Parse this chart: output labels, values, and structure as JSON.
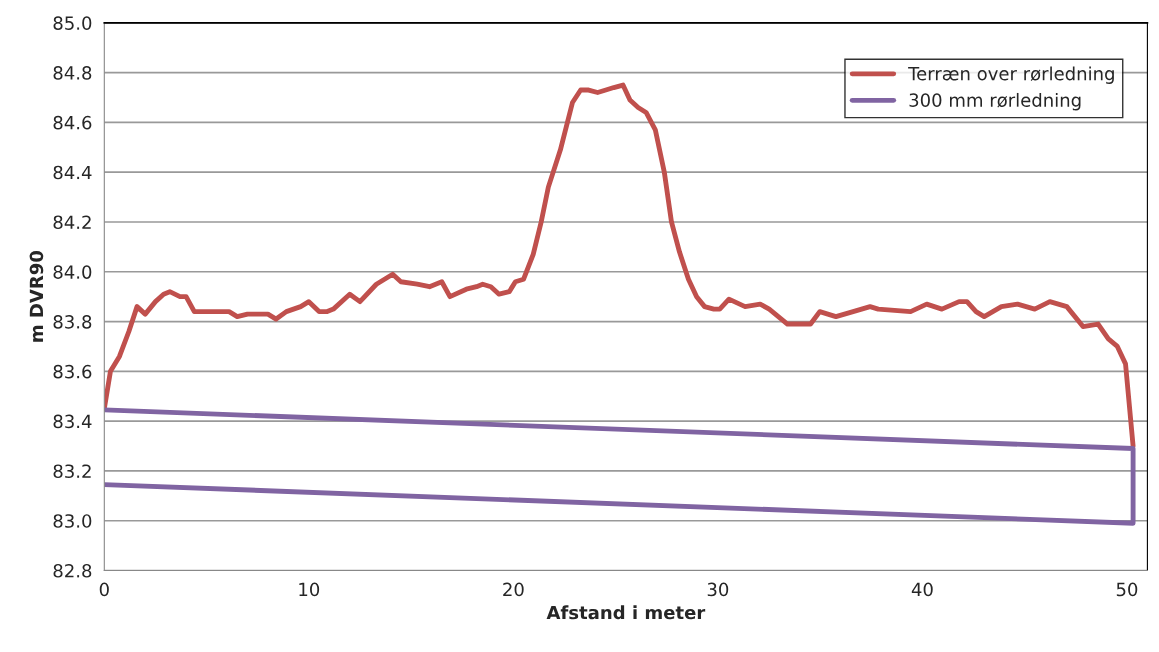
{
  "chart_data": {
    "type": "line",
    "xlabel": "Afstand i meter",
    "ylabel": "m DVR90",
    "xlim": [
      0,
      51
    ],
    "xticks": [
      0,
      10,
      20,
      30,
      40,
      50
    ],
    "ylim": [
      82.8,
      85.0
    ],
    "yticks": [
      {
        "value": 82.8,
        "label": "82.8"
      },
      {
        "value": 83.0,
        "label": "83.0"
      },
      {
        "value": 83.2,
        "label": "83.2"
      },
      {
        "value": 83.4,
        "label": "83.4"
      },
      {
        "value": 83.6,
        "label": "83.6"
      },
      {
        "value": 83.8,
        "label": "83.8"
      },
      {
        "value": 84.0,
        "label": "84.0"
      },
      {
        "value": 84.2,
        "label": "84.2"
      },
      {
        "value": 84.4,
        "label": "84.4"
      },
      {
        "value": 84.6,
        "label": "84.6"
      },
      {
        "value": 84.8,
        "label": "84.8"
      },
      {
        "value": 85.0,
        "label": "85.0"
      }
    ],
    "grid": "y",
    "legend": "top right",
    "marker": "none",
    "line_style": "solid",
    "series": [
      {
        "name": "Terræn over rørledning",
        "color": "#c0504d",
        "x": [
          0,
          0.3,
          0.74,
          1.2,
          1.6,
          2.0,
          2.5,
          2.9,
          3.2,
          3.7,
          4.0,
          4.4,
          5.3,
          5.8,
          6.1,
          6.5,
          7.0,
          7.6,
          8.0,
          8.4,
          8.9,
          9.6,
          10.0,
          10.5,
          10.9,
          11.2,
          12.0,
          12.5,
          13.3,
          14.1,
          14.5,
          15.3,
          15.9,
          16.2,
          16.5,
          16.9,
          17.7,
          18.2,
          18.5,
          18.9,
          19.3,
          19.8,
          20.1,
          20.5,
          20.97,
          21.36,
          21.71,
          22.3,
          22.89,
          23.29,
          23.68,
          24.12,
          24.52,
          24.91,
          25.36,
          25.7,
          26.1,
          26.49,
          26.94,
          27.38,
          27.73,
          28.12,
          28.56,
          28.96,
          29.35,
          29.8,
          30.09,
          30.54,
          31.33,
          32.07,
          32.51,
          33.4,
          34.04,
          34.53,
          34.98,
          35.77,
          36.61,
          37.44,
          37.84,
          39.42,
          40.21,
          40.95,
          41.79,
          42.18,
          42.62,
          43.02,
          43.86,
          44.65,
          45.49,
          46.23,
          47.06,
          47.85,
          48.59,
          49.09,
          49.53,
          49.93,
          50.3
        ],
        "values": [
          83.45,
          83.6,
          83.66,
          83.76,
          83.86,
          83.83,
          83.88,
          83.91,
          83.92,
          83.9,
          83.9,
          83.84,
          83.84,
          83.84,
          83.84,
          83.82,
          83.83,
          83.83,
          83.83,
          83.81,
          83.84,
          83.86,
          83.88,
          83.84,
          83.84,
          83.85,
          83.91,
          83.88,
          83.95,
          83.99,
          83.96,
          83.95,
          83.94,
          83.95,
          83.96,
          83.9,
          83.93,
          83.94,
          83.95,
          83.94,
          83.91,
          83.92,
          83.96,
          83.97,
          84.07,
          84.2,
          84.34,
          84.49,
          84.68,
          84.73,
          84.73,
          84.72,
          84.73,
          84.74,
          84.75,
          84.69,
          84.66,
          84.64,
          84.57,
          84.4,
          84.2,
          84.08,
          83.97,
          83.9,
          83.86,
          83.85,
          83.85,
          83.89,
          83.86,
          83.87,
          83.85,
          83.79,
          83.79,
          83.79,
          83.84,
          83.82,
          83.84,
          83.86,
          83.85,
          83.84,
          83.87,
          83.85,
          83.88,
          83.88,
          83.84,
          83.82,
          83.86,
          83.87,
          83.85,
          83.88,
          83.86,
          83.78,
          83.79,
          83.73,
          83.7,
          83.63,
          83.3
        ]
      },
      {
        "name": "300 mm rørledning",
        "color": "#8064a2",
        "x": [
          0,
          50.3,
          50.3,
          0
        ],
        "values": [
          83.445,
          83.29,
          82.99,
          83.145
        ]
      }
    ]
  }
}
